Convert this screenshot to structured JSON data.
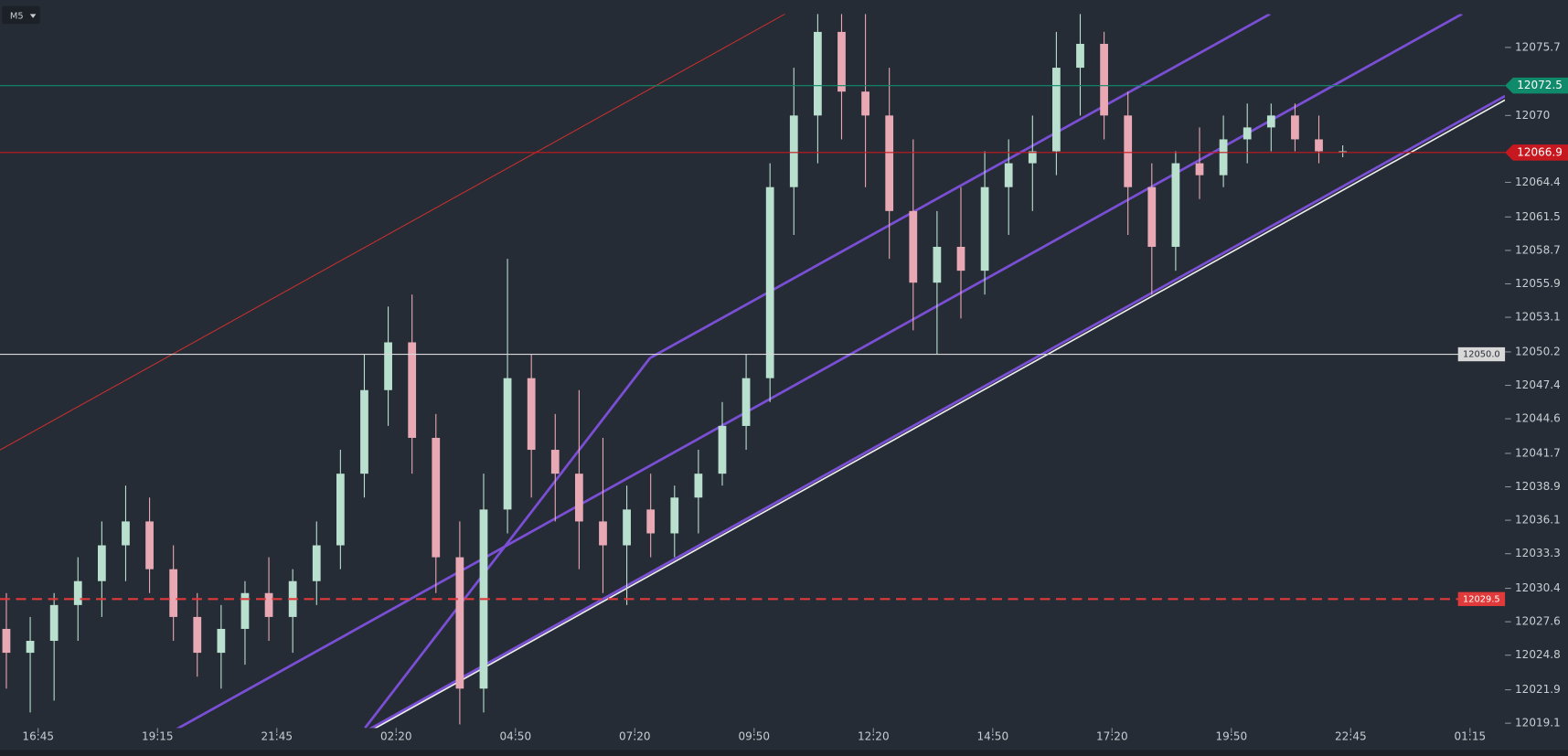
{
  "timeframe": "M5",
  "chart_data": {
    "type": "candlestick",
    "xlim": [
      -9.6,
      368.8
    ],
    "xticks": [
      {
        "value": 0,
        "label": "16:45"
      },
      {
        "value": 30,
        "label": "19:15"
      },
      {
        "value": 60,
        "label": "21:45"
      },
      {
        "value": 90,
        "label": "02:20"
      },
      {
        "value": 120,
        "label": "04:50"
      },
      {
        "value": 150,
        "label": "07:20"
      },
      {
        "value": 180,
        "label": "09:50"
      },
      {
        "value": 210,
        "label": "12:20"
      },
      {
        "value": 240,
        "label": "14:50"
      },
      {
        "value": 270,
        "label": "17:20"
      },
      {
        "value": 300,
        "label": "19:50"
      },
      {
        "value": 330,
        "label": "22:45"
      },
      {
        "value": 360,
        "label": "01:15"
      }
    ],
    "ylim": [
      12018.7,
      12078.5
    ],
    "yticks": [
      12075.7,
      12070.0,
      12064.4,
      12061.5,
      12058.7,
      12055.9,
      12053.1,
      12050.2,
      12047.4,
      12044.6,
      12041.7,
      12038.9,
      12036.1,
      12033.3,
      12030.4,
      12027.6,
      12024.8,
      12021.9,
      12019.1
    ],
    "up_color": "#b9e0cf",
    "down_color": "#e8a9b4",
    "x": [
      -8,
      -2,
      4,
      10,
      16,
      22,
      28,
      34,
      40,
      46,
      52,
      58,
      64,
      70,
      76,
      82,
      88,
      94,
      100,
      106,
      112,
      118,
      124,
      130,
      136,
      142,
      148,
      154,
      160,
      166,
      172,
      178,
      184,
      190,
      196,
      202,
      208,
      214,
      220,
      226,
      232,
      238,
      244,
      250,
      256,
      262,
      268,
      274,
      280,
      286,
      292,
      298,
      304,
      310,
      316,
      322,
      328
    ],
    "open": [
      12027,
      12025,
      12026,
      12029,
      12031,
      12034,
      12036,
      12032,
      12028,
      12025,
      12027,
      12030,
      12028,
      12031,
      12034,
      12040,
      12047,
      12051,
      12043,
      12033,
      12022,
      12037,
      12048,
      12042,
      12040,
      12036,
      12034,
      12037,
      12035,
      12038,
      12040,
      12044,
      12048,
      12064,
      12070,
      12077,
      12072,
      12070,
      12062,
      12056,
      12059,
      12057,
      12064,
      12066,
      12067,
      12074,
      12076,
      12070,
      12064,
      12059,
      12066,
      12065,
      12068,
      12069,
      12070,
      12068,
      12067
    ],
    "high": [
      12030,
      12028,
      12030,
      12033,
      12036,
      12039,
      12038,
      12034,
      12030,
      12029,
      12031,
      12033,
      12032,
      12036,
      12042,
      12050,
      12054,
      12055,
      12045,
      12036,
      12040,
      12058,
      12050,
      12045,
      12047,
      12043,
      12039,
      12040,
      12039,
      12042,
      12046,
      12050,
      12066,
      12074,
      12080,
      12080,
      12079,
      12074,
      12068,
      12062,
      12064,
      12067,
      12068,
      12070,
      12077,
      12079,
      12077,
      12072,
      12066,
      12067,
      12069,
      12070,
      12071,
      12071,
      12071,
      12070,
      12067.5
    ],
    "low": [
      12022,
      12020,
      12021,
      12026,
      12028,
      12031,
      12030,
      12026,
      12023,
      12022,
      12024,
      12026,
      12025,
      12029,
      12032,
      12038,
      12044,
      12040,
      12030,
      12019,
      12020,
      12035,
      12038,
      12036,
      12032,
      12030,
      12029,
      12033,
      12033,
      12035,
      12039,
      12042,
      12046,
      12060,
      12066,
      12068,
      12064,
      12058,
      12052,
      12050,
      12053,
      12055,
      12060,
      12062,
      12065,
      12070,
      12068,
      12060,
      12055,
      12057,
      12063,
      12064,
      12066,
      12067,
      12067,
      12066,
      12066.5
    ],
    "close": [
      12025,
      12026,
      12029,
      12031,
      12034,
      12036,
      12032,
      12028,
      12025,
      12027,
      12030,
      12028,
      12031,
      12034,
      12040,
      12047,
      12051,
      12043,
      12033,
      12022,
      12037,
      12048,
      12042,
      12040,
      12036,
      12034,
      12037,
      12035,
      12038,
      12040,
      12044,
      12048,
      12064,
      12070,
      12077,
      12072,
      12070,
      12062,
      12056,
      12059,
      12057,
      12064,
      12066,
      12067,
      12074,
      12076,
      12070,
      12064,
      12059,
      12066,
      12065,
      12068,
      12069,
      12070,
      12068,
      12067,
      12067
    ],
    "levels": [
      {
        "value": 12072.5,
        "color": "#0f8a6a",
        "style": "solid",
        "tag": "axis"
      },
      {
        "value": 12066.9,
        "color": "#c8181f",
        "style": "solid",
        "tag": "axis"
      },
      {
        "value": 12050.0,
        "label": "12050.0",
        "color": "#d8d8d8",
        "style": "solid",
        "tag": "inline"
      },
      {
        "value": 12029.5,
        "color": "#e03a3a",
        "style": "dashed",
        "tag": "inline"
      }
    ]
  }
}
